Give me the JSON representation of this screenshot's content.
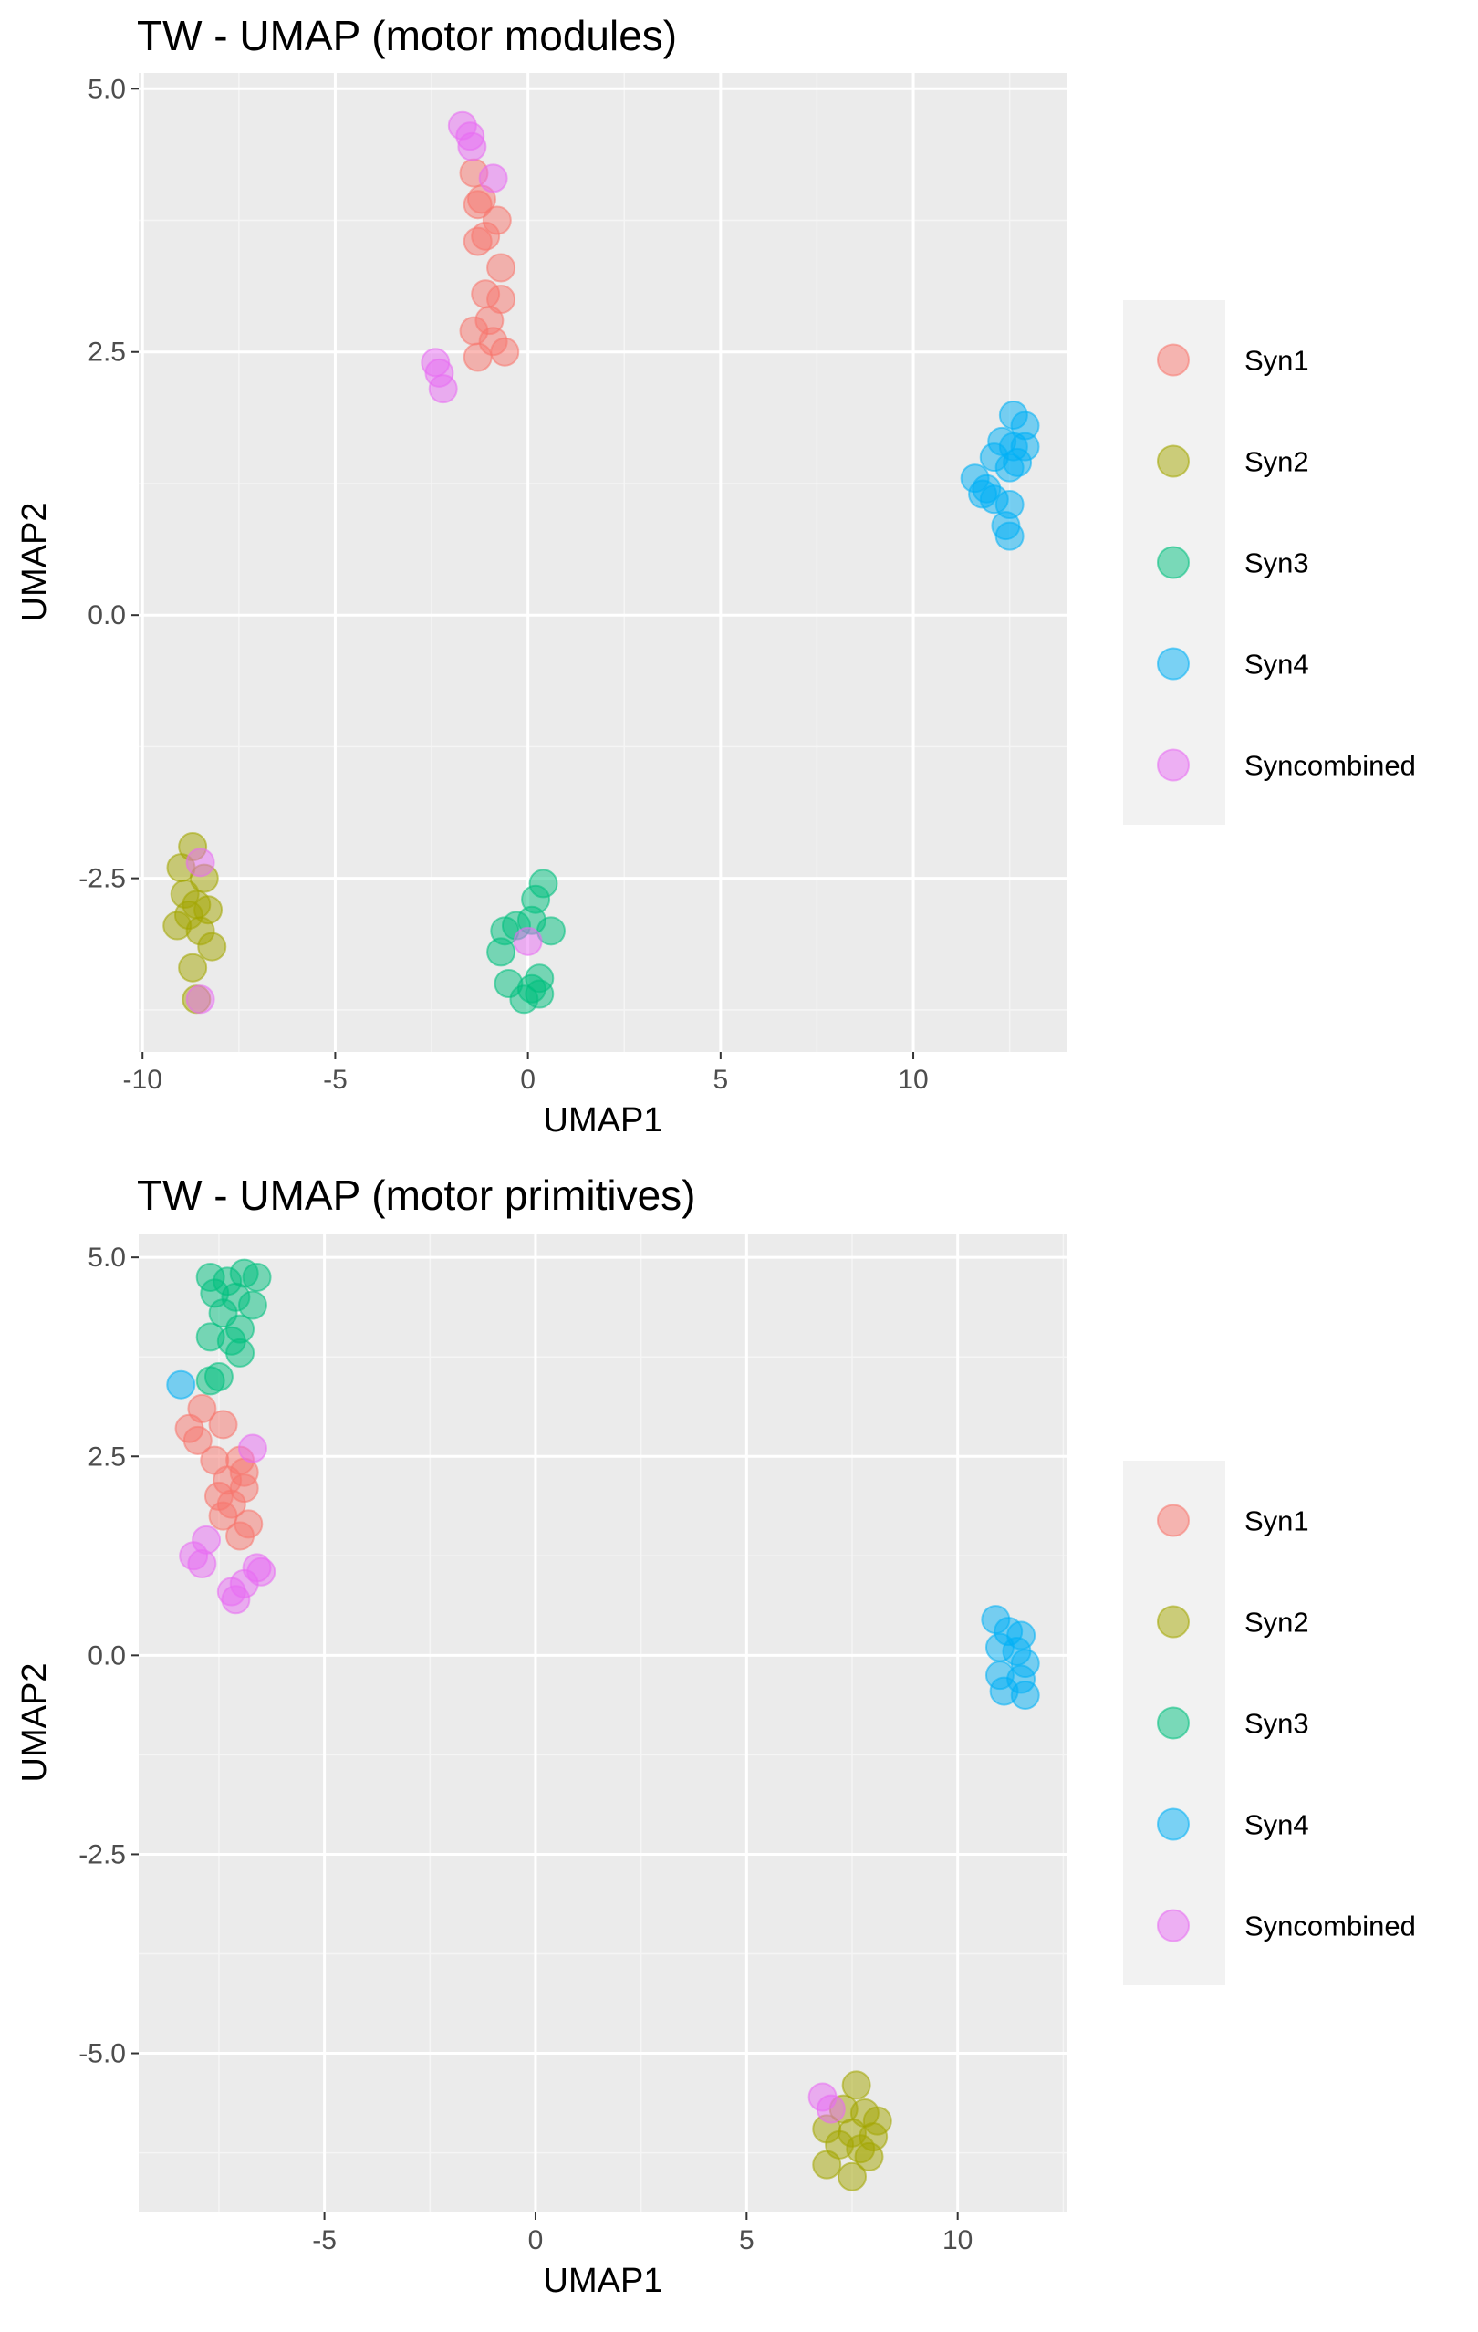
{
  "colors": {
    "panel_bg": "#EBEBEB",
    "grid_major": "#FFFFFF",
    "grid_minor": "#F5F5F5",
    "tick_text": "#4D4D4D",
    "legend_bg": "#F2F2F2"
  },
  "chart_data": [
    {
      "type": "scatter",
      "title": "TW - UMAP (motor modules)",
      "xlabel": "UMAP1",
      "ylabel": "UMAP2",
      "xlim": [
        -10.1,
        14.0
      ],
      "ylim": [
        -4.15,
        5.15
      ],
      "xticks": [
        -10,
        -5,
        0,
        5,
        10
      ],
      "xtick_labels": [
        "-10",
        "-5",
        "0",
        "5",
        "10"
      ],
      "yticks": [
        5.0,
        2.5,
        0.0,
        -2.5
      ],
      "ytick_labels": [
        "5.0",
        "2.5",
        "0.0",
        "-2.5"
      ],
      "grid": true,
      "legend_position": "right",
      "series": [
        {
          "name": "Syn1",
          "color": "#F8766D",
          "points": [
            [
              -1.4,
              4.2
            ],
            [
              -1.2,
              3.95
            ],
            [
              -1.3,
              3.9
            ],
            [
              -0.8,
              3.75
            ],
            [
              -1.1,
              3.6
            ],
            [
              -1.3,
              3.55
            ],
            [
              -0.7,
              3.3
            ],
            [
              -1.1,
              3.05
            ],
            [
              -0.7,
              3.0
            ],
            [
              -1.0,
              2.8
            ],
            [
              -1.4,
              2.7
            ],
            [
              -0.9,
              2.6
            ],
            [
              -0.6,
              2.5
            ],
            [
              -1.3,
              2.45
            ]
          ]
        },
        {
          "name": "Syn2",
          "color": "#A3A500",
          "points": [
            [
              -8.7,
              -2.2
            ],
            [
              -9.0,
              -2.4
            ],
            [
              -8.4,
              -2.5
            ],
            [
              -8.9,
              -2.65
            ],
            [
              -8.6,
              -2.75
            ],
            [
              -8.3,
              -2.8
            ],
            [
              -8.8,
              -2.85
            ],
            [
              -9.1,
              -2.95
            ],
            [
              -8.5,
              -3.0
            ],
            [
              -8.2,
              -3.15
            ],
            [
              -8.7,
              -3.35
            ],
            [
              -8.6,
              -3.65
            ]
          ]
        },
        {
          "name": "Syn3",
          "color": "#00BF7D",
          "points": [
            [
              0.4,
              -2.55
            ],
            [
              0.2,
              -2.7
            ],
            [
              0.1,
              -2.9
            ],
            [
              -0.3,
              -2.95
            ],
            [
              -0.6,
              -3.0
            ],
            [
              0.6,
              -3.0
            ],
            [
              -0.7,
              -3.2
            ],
            [
              0.3,
              -3.45
            ],
            [
              -0.5,
              -3.5
            ],
            [
              0.1,
              -3.55
            ],
            [
              0.3,
              -3.6
            ],
            [
              -0.1,
              -3.65
            ]
          ]
        },
        {
          "name": "Syn4",
          "color": "#00B0F6",
          "points": [
            [
              12.6,
              1.9
            ],
            [
              12.9,
              1.8
            ],
            [
              12.3,
              1.65
            ],
            [
              12.9,
              1.6
            ],
            [
              12.6,
              1.6
            ],
            [
              12.1,
              1.5
            ],
            [
              12.7,
              1.45
            ],
            [
              12.5,
              1.4
            ],
            [
              11.6,
              1.3
            ],
            [
              11.9,
              1.2
            ],
            [
              11.8,
              1.15
            ],
            [
              12.1,
              1.1
            ],
            [
              12.5,
              1.05
            ],
            [
              12.4,
              0.85
            ],
            [
              12.5,
              0.75
            ]
          ]
        },
        {
          "name": "Syncombined",
          "color": "#E76BF3",
          "points": [
            [
              -1.7,
              4.65
            ],
            [
              -1.5,
              4.55
            ],
            [
              -1.45,
              4.45
            ],
            [
              -0.9,
              4.15
            ],
            [
              -2.4,
              2.4
            ],
            [
              -2.3,
              2.3
            ],
            [
              -2.2,
              2.15
            ],
            [
              -8.5,
              -2.35
            ],
            [
              -8.5,
              -3.65
            ],
            [
              0.0,
              -3.1
            ]
          ]
        }
      ]
    },
    {
      "type": "scatter",
      "title": "TW - UMAP (motor primitives)",
      "xlabel": "UMAP1",
      "ylabel": "UMAP2",
      "xlim": [
        -9.4,
        12.6
      ],
      "ylim": [
        -7.0,
        5.3
      ],
      "xticks": [
        -5,
        0,
        5,
        10
      ],
      "xtick_labels": [
        "-5",
        "0",
        "5",
        "10"
      ],
      "yticks": [
        5.0,
        2.5,
        0.0,
        -2.5,
        -5.0
      ],
      "ytick_labels": [
        "5.0",
        "2.5",
        "0.0",
        "-2.5",
        "-5.0"
      ],
      "grid": true,
      "legend_position": "right",
      "series": [
        {
          "name": "Syn1",
          "color": "#F8766D",
          "points": [
            [
              -7.9,
              3.1
            ],
            [
              -8.2,
              2.85
            ],
            [
              -7.4,
              2.9
            ],
            [
              -8.0,
              2.7
            ],
            [
              -7.6,
              2.45
            ],
            [
              -7.0,
              2.45
            ],
            [
              -6.9,
              2.3
            ],
            [
              -7.3,
              2.2
            ],
            [
              -6.9,
              2.1
            ],
            [
              -7.5,
              2.0
            ],
            [
              -7.2,
              1.9
            ],
            [
              -7.4,
              1.75
            ],
            [
              -6.8,
              1.65
            ],
            [
              -7.0,
              1.5
            ]
          ]
        },
        {
          "name": "Syn2",
          "color": "#A3A500",
          "points": [
            [
              7.6,
              -5.4
            ],
            [
              7.3,
              -5.7
            ],
            [
              7.8,
              -5.75
            ],
            [
              8.1,
              -5.85
            ],
            [
              6.9,
              -5.95
            ],
            [
              7.5,
              -6.0
            ],
            [
              8.0,
              -6.05
            ],
            [
              7.2,
              -6.15
            ],
            [
              7.7,
              -6.2
            ],
            [
              7.9,
              -6.3
            ],
            [
              6.9,
              -6.4
            ],
            [
              7.5,
              -6.55
            ]
          ]
        },
        {
          "name": "Syn3",
          "color": "#00BF7D",
          "points": [
            [
              -7.7,
              4.75
            ],
            [
              -6.9,
              4.8
            ],
            [
              -7.3,
              4.7
            ],
            [
              -6.6,
              4.75
            ],
            [
              -7.6,
              4.55
            ],
            [
              -7.1,
              4.5
            ],
            [
              -6.7,
              4.4
            ],
            [
              -7.4,
              4.3
            ],
            [
              -7.0,
              4.1
            ],
            [
              -7.7,
              4.0
            ],
            [
              -7.2,
              3.95
            ],
            [
              -7.0,
              3.8
            ],
            [
              -7.5,
              3.5
            ],
            [
              -7.7,
              3.45
            ]
          ]
        },
        {
          "name": "Syn4",
          "color": "#00B0F6",
          "points": [
            [
              -8.4,
              3.4
            ],
            [
              10.9,
              0.45
            ],
            [
              11.2,
              0.3
            ],
            [
              11.5,
              0.25
            ],
            [
              11.0,
              0.1
            ],
            [
              11.4,
              0.05
            ],
            [
              11.6,
              -0.1
            ],
            [
              11.0,
              -0.25
            ],
            [
              11.5,
              -0.3
            ],
            [
              11.1,
              -0.45
            ],
            [
              11.6,
              -0.5
            ]
          ]
        },
        {
          "name": "Syncombined",
          "color": "#E76BF3",
          "points": [
            [
              -6.7,
              2.6
            ],
            [
              -7.8,
              1.45
            ],
            [
              -8.1,
              1.25
            ],
            [
              -7.9,
              1.15
            ],
            [
              -6.5,
              1.05
            ],
            [
              -6.6,
              1.1
            ],
            [
              -6.9,
              0.9
            ],
            [
              -7.2,
              0.8
            ],
            [
              -7.1,
              0.7
            ],
            [
              6.8,
              -5.55
            ],
            [
              7.0,
              -5.7
            ]
          ]
        }
      ]
    }
  ]
}
